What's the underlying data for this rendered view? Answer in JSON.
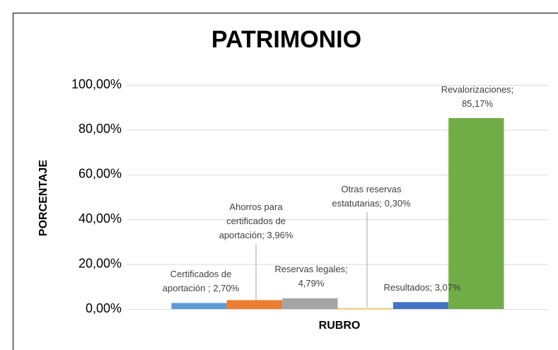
{
  "chart_data": {
    "type": "bar",
    "title": "PATRIMONIO",
    "x_label": "RUBRO",
    "y_label": "PORCENTAJE",
    "values": [
      2.7,
      3.96,
      4.79,
      0.3,
      3.07,
      85.17
    ],
    "value_labels": [
      "Certificados de aportación ; 2,70%",
      "Ahorros para certificados de aportación; 3,96%",
      "Reservas legales; 4,79%",
      "Otras reservas estatutarias; 0,30%",
      "Resultados; 3,07%",
      "Revalorizaciones; 85,17%"
    ],
    "colors": [
      "#5b9bd5",
      "#ed7d31",
      "#a5a5a5",
      "#ffc000",
      "#4472c4",
      "#70ad47"
    ],
    "ylim": [
      0,
      100
    ],
    "yticks": [
      {
        "value": 0,
        "label": "0,00%"
      },
      {
        "value": 20,
        "label": "20,00%"
      },
      {
        "value": 40,
        "label": "40,00%"
      },
      {
        "value": 60,
        "label": "60,00%"
      },
      {
        "value": 80,
        "label": "80,00%"
      },
      {
        "value": 100,
        "label": "100,00%"
      }
    ],
    "grid": true
  }
}
